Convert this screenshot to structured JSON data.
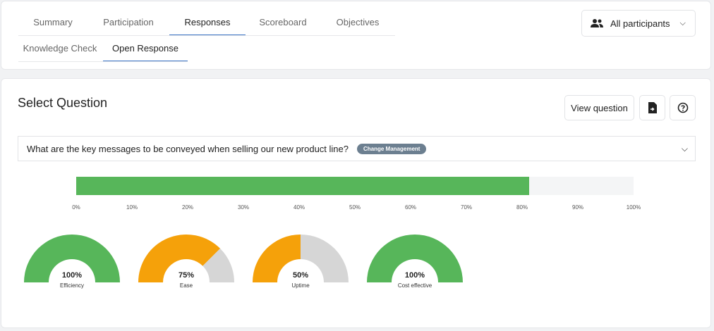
{
  "tabs": [
    {
      "label": "Summary"
    },
    {
      "label": "Participation"
    },
    {
      "label": "Responses"
    },
    {
      "label": "Scoreboard"
    },
    {
      "label": "Objectives"
    }
  ],
  "subtabs": [
    {
      "label": "Knowledge Check"
    },
    {
      "label": "Open Response"
    }
  ],
  "active_tab": "Responses",
  "active_subtab": "Open Response",
  "participants": {
    "label": "All participants",
    "icon": "users-icon"
  },
  "section": {
    "title": "Select Question"
  },
  "buttons": {
    "view_question": "View question",
    "export_icon": "document-export-icon",
    "help_icon": "help-circle-icon"
  },
  "question": {
    "text": "What are the key messages to be conveyed when selling our new product line?",
    "tag": "Change Management"
  },
  "progress": {
    "value_percent": 81.3,
    "ticks": [
      "0%",
      "10%",
      "20%",
      "30%",
      "40%",
      "50%",
      "60%",
      "70%",
      "80%",
      "90%",
      "100%"
    ]
  },
  "gauges": [
    {
      "value": 100,
      "value_label": "100%",
      "label": "Efficiency",
      "color": "#57b65a"
    },
    {
      "value": 75,
      "value_label": "75%",
      "label": "Ease",
      "color": "#f5a10a"
    },
    {
      "value": 50,
      "value_label": "50%",
      "label": "Uptime",
      "color": "#f5a10a"
    },
    {
      "value": 100,
      "value_label": "100%",
      "label": "Cost effective",
      "color": "#57b65a"
    }
  ],
  "colors": {
    "accent": "#3b74c4",
    "bar_fill": "#57b65a",
    "gauge_rest": "#d6d6d6",
    "tag_bg": "#6c7f90"
  }
}
